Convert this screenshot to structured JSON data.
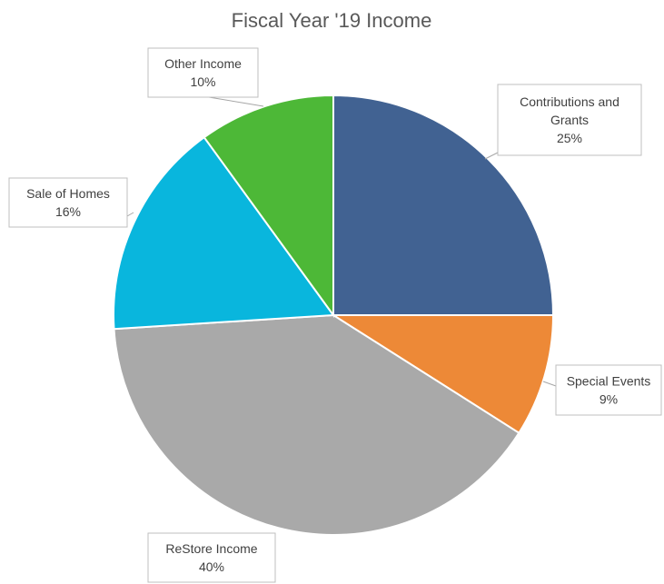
{
  "chart_data": {
    "type": "pie",
    "title": "Fiscal Year '19 Income",
    "slices": [
      {
        "name": "Contributions and Grants",
        "label_lines": [
          "Contributions and",
          "Grants"
        ],
        "percent_label": "25%",
        "value": 25,
        "color": "#416292"
      },
      {
        "name": "Special Events",
        "label_lines": [
          "Special Events"
        ],
        "percent_label": "9%",
        "value": 9,
        "color": "#ed8937"
      },
      {
        "name": "ReStore Income",
        "label_lines": [
          "ReStore Income"
        ],
        "percent_label": "40%",
        "value": 40,
        "color": "#a9a9a9"
      },
      {
        "name": "Sale of Homes",
        "label_lines": [
          "Sale of Homes"
        ],
        "percent_label": "16%",
        "value": 16,
        "color": "#09b6dd"
      },
      {
        "name": "Other Income",
        "label_lines": [
          "Other Income"
        ],
        "percent_label": "10%",
        "value": 10,
        "color": "#4db837"
      }
    ],
    "legend": "none",
    "start_angle": "12 o'clock",
    "direction": "clockwise"
  }
}
